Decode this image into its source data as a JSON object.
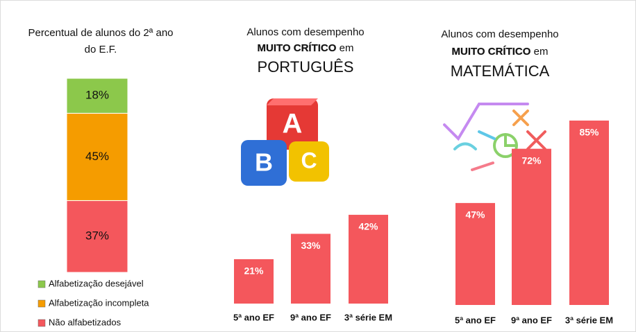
{
  "chart_data": [
    {
      "type": "stacked_bar",
      "title": [
        "Percentual de alunos do 2ª ano",
        "do E.F."
      ],
      "series": [
        {
          "name": "Não alfabetizados",
          "color": "#f4575c",
          "values": [
            37
          ],
          "value_labels": [
            "37%"
          ]
        },
        {
          "name": "Alfabetização incompleta",
          "color": "#f59c00",
          "values": [
            45
          ],
          "value_labels": [
            "45%"
          ]
        },
        {
          "name": "Alfabetização desejável",
          "color": "#8cc84b",
          "values": [
            18
          ],
          "value_labels": [
            "18%"
          ]
        }
      ]
    },
    {
      "type": "bar",
      "title": [
        "Alunos com desempenho",
        "MUITO CRÍTICO",
        "em",
        "PORTUGUÊS"
      ],
      "categories": [
        "5ª ano EF",
        "9ª ano EF",
        "3ª série EM"
      ],
      "values": [
        21,
        33,
        42
      ],
      "value_labels": [
        "21%",
        "33%",
        "42%"
      ],
      "color": "#f4575c"
    },
    {
      "type": "bar",
      "title": [
        "Alunos com desempenho",
        "MUITO CRÍTICO",
        "em",
        "MATEMÁTICA"
      ],
      "categories": [
        "5ª ano EF",
        "9ª ano EF",
        "3ª série EM"
      ],
      "values": [
        47,
        72,
        85
      ],
      "value_labels": [
        "47%",
        "72%",
        "85%"
      ],
      "color": "#f4575c"
    }
  ]
}
